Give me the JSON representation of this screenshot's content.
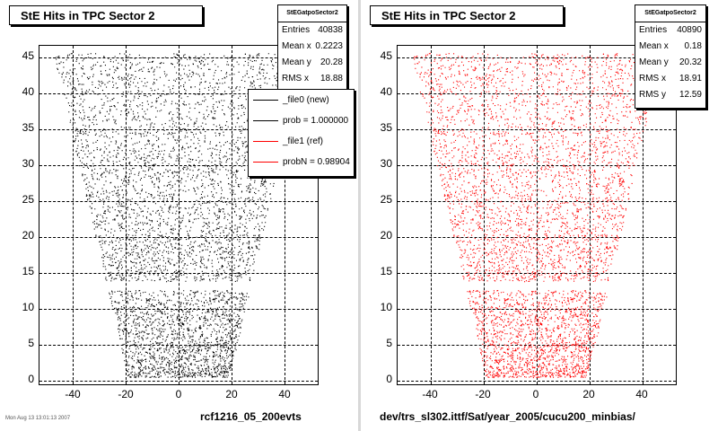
{
  "colors": {
    "ref_color": "#000000",
    "new_color": "#ff0000",
    "frame": "#000000",
    "background": "#ffffff"
  },
  "panels": [
    {
      "title": "StE Hits in TPC Sector 2",
      "caption": "rcf1216_05_200evts",
      "stats": {
        "name": "StEGatpoSector2",
        "rows": [
          {
            "label": "Entries",
            "value": "40838"
          },
          {
            "label": "Mean x",
            "value": "0.2223"
          },
          {
            "label": "Mean y",
            "value": "20.28"
          },
          {
            "label": "RMS x",
            "value": "18.88"
          }
        ]
      },
      "legend": {
        "entries": [
          {
            "text": "_file0 (new)",
            "color": "#000000"
          },
          {
            "text": "prob = 1.000000",
            "color": "#000000"
          },
          {
            "text": "_file1 (ref)",
            "color": "#ff0000"
          },
          {
            "text": "probN = 0.98904",
            "color": "#ff0000"
          }
        ]
      }
    },
    {
      "title": "StE Hits in TPC Sector 2",
      "caption": "dev/trs_sl302.ittf/Sat/year_2005/cucu200_minbias/",
      "stats": {
        "name": "StEGatpoSector2",
        "rows": [
          {
            "label": "Entries",
            "value": "40890"
          },
          {
            "label": "Mean x",
            "value": "0.18"
          },
          {
            "label": "Mean y",
            "value": "20.32"
          },
          {
            "label": "RMS x",
            "value": "18.91"
          },
          {
            "label": "RMS y",
            "value": "12.59"
          }
        ]
      }
    }
  ],
  "chart_data": [
    {
      "type": "scatter",
      "title": "StE Hits in TPC Sector 2",
      "color": "#000000",
      "xlim": [
        -52,
        52
      ],
      "ylim": [
        -0.5,
        46.5
      ],
      "xticks": [
        -40,
        -20,
        0,
        20,
        40
      ],
      "yticks": [
        0,
        5,
        10,
        15,
        20,
        25,
        30,
        35,
        40,
        45
      ],
      "distribution": {
        "y_range": [
          0.5,
          45.5
        ],
        "half_width_at_y0": 19,
        "half_width_at_ymax": 47,
        "gap_y": [
          13.8,
          12.6
        ],
        "entries": 40838
      },
      "grid": true
    },
    {
      "type": "scatter",
      "title": "StE Hits in TPC Sector 2",
      "color": "#ff0000",
      "xlim": [
        -52,
        52
      ],
      "ylim": [
        -0.5,
        46.5
      ],
      "xticks": [
        -40,
        -20,
        0,
        20,
        40
      ],
      "yticks": [
        0,
        5,
        10,
        15,
        20,
        25,
        30,
        35,
        40,
        45
      ],
      "distribution": {
        "y_range": [
          0.5,
          45.5
        ],
        "half_width_at_y0": 19,
        "half_width_at_ymax": 47,
        "gap_y": [
          13.8,
          12.6
        ],
        "entries": 40890
      },
      "grid": true
    }
  ],
  "footer": {
    "timestamp": "Mon Aug 13 13:01:13 2007"
  }
}
